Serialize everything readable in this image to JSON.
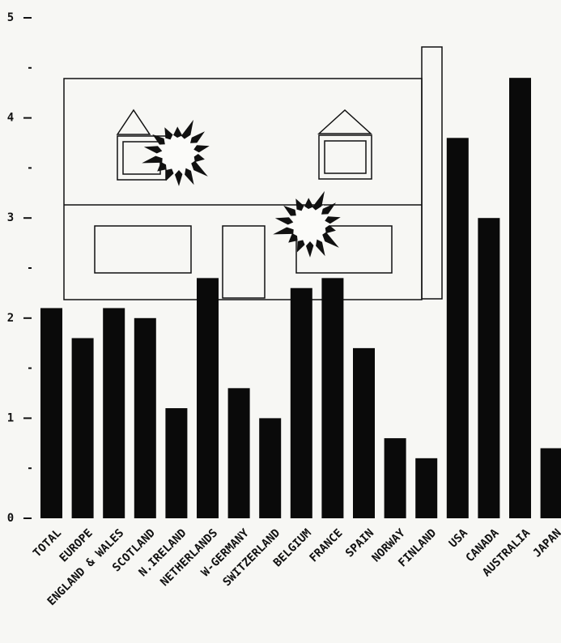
{
  "chart_data": {
    "type": "bar",
    "categories": [
      "TOTAL",
      "EUROPE",
      "ENGLAND & WALES",
      "SCOTLAND",
      "N.IRELAND",
      "NETHERLANDS",
      "W-GERMANY",
      "SWITZERLAND",
      "BELGIUM",
      "FRANCE",
      "SPAIN",
      "NORWAY",
      "FINLAND",
      "USA",
      "CANADA",
      "AUSTRALIA",
      "JAPAN"
    ],
    "values": [
      2.1,
      1.8,
      2.1,
      2.0,
      1.1,
      2.4,
      1.3,
      1.0,
      2.3,
      2.4,
      1.7,
      0.8,
      0.6,
      3.8,
      3.0,
      4.4,
      0.7
    ],
    "color": "#0a0a0a",
    "ylim": [
      0,
      5
    ],
    "yticks": [
      0,
      1,
      2,
      3,
      4,
      5
    ],
    "minor_yticks": [
      0.5,
      1.5,
      2.5,
      3.5,
      4.5
    ],
    "grid": false
  }
}
